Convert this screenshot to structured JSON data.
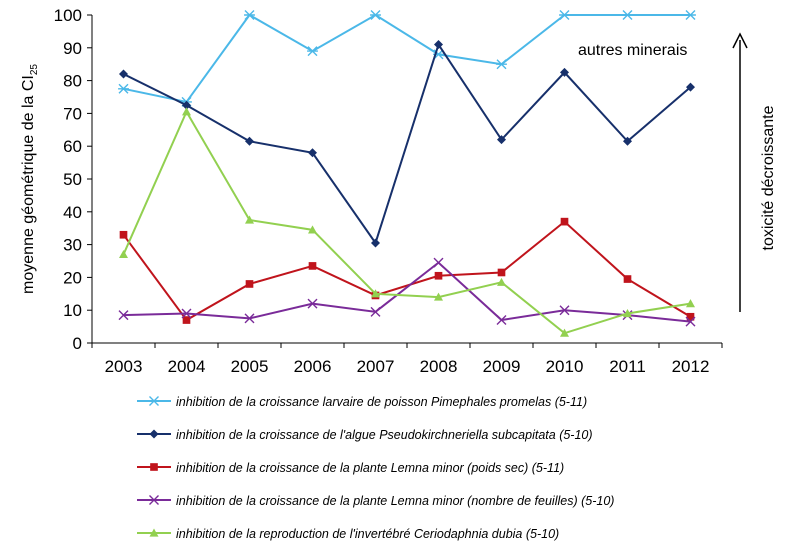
{
  "chart_data": {
    "type": "line",
    "categories": [
      "2003",
      "2004",
      "2005",
      "2006",
      "2007",
      "2008",
      "2009",
      "2010",
      "2011",
      "2012"
    ],
    "ylim": [
      0,
      100
    ],
    "yticks": [
      0,
      10,
      20,
      30,
      40,
      50,
      60,
      70,
      80,
      90,
      100
    ],
    "ylabel": "moyenne géométrique de la CI",
    "ylabel_sub": "25",
    "annotation": "autres minerais",
    "arrow_label": "toxicité décroissante",
    "grid": false,
    "legend_position": "bottom",
    "series": [
      {
        "name": "inhibition de la croissance larvaire de poisson Pimephales promelas (5-11)",
        "legend_prefix": "inhibition de la croissance larvaire de poisson ",
        "legend_species": "Pimephales promelas",
        "legend_suffix": " (5-11)",
        "color": "#4bb8e8",
        "marker": "asterisk",
        "values": [
          77.5,
          73.5,
          100,
          89,
          100,
          88,
          85,
          100,
          100,
          100
        ]
      },
      {
        "name": "inhibition de la croissance de l'algue Pseudokirchneriella subcapitata (5-10)",
        "legend_prefix": "inhibition de la croissance de l'algue ",
        "legend_species": "Pseudokirchneriella subcapitata",
        "legend_suffix": " (5-10)",
        "color": "#17306b",
        "marker": "diamond",
        "values": [
          82,
          72.5,
          61.5,
          58,
          30.5,
          91,
          62,
          82.5,
          61.5,
          78
        ]
      },
      {
        "name": "inhibition de la croissance de la plante Lemna minor (poids sec) (5-11)",
        "legend_prefix": "inhibition de la croissance de la plante ",
        "legend_species": "Lemna minor",
        "legend_suffix": " (poids sec) (5-11)",
        "color": "#c0141c",
        "marker": "square",
        "values": [
          33,
          7,
          18,
          23.5,
          14.5,
          20.5,
          21.5,
          37,
          19.5,
          8
        ]
      },
      {
        "name": "inhibition de la croissance de la plante Lemna minor (nombre de feuilles) (5-10)",
        "legend_prefix": "inhibition de la croissance de la plante ",
        "legend_species": "Lemna minor",
        "legend_suffix": " (nombre de feuilles) (5-10)",
        "color": "#7a2b99",
        "marker": "x",
        "values": [
          8.5,
          9,
          7.5,
          12,
          9.5,
          24.5,
          7,
          10,
          8.5,
          6.5
        ]
      },
      {
        "name": "inhibition de la reproduction de l'invertébré Ceriodaphnia dubia (5-10)",
        "legend_prefix": "inhibition de la reproduction de l'invertébré ",
        "legend_species": "Ceriodaphnia dubia",
        "legend_suffix": " (5-10)",
        "color": "#92d050",
        "marker": "triangle",
        "values": [
          27,
          70.5,
          37.5,
          34.5,
          15,
          14,
          18.5,
          3,
          9,
          12
        ]
      }
    ]
  }
}
